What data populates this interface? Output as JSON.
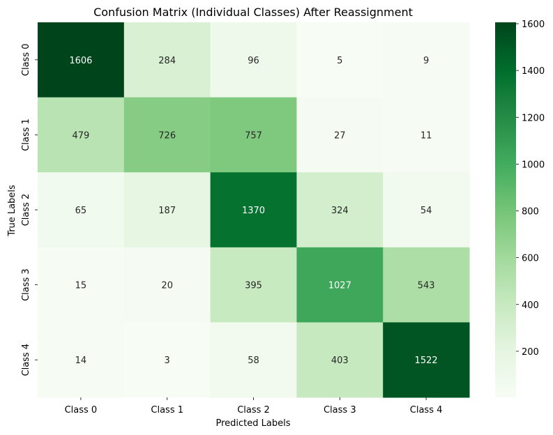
{
  "chart_data": {
    "type": "heatmap",
    "title": "Confusion Matrix (Individual Classes) After Reassignment",
    "xlabel": "Predicted Labels",
    "ylabel": "True Labels",
    "x_categories": [
      "Class 0",
      "Class 1",
      "Class 2",
      "Class 3",
      "Class 4"
    ],
    "y_categories": [
      "Class 0",
      "Class 1",
      "Class 2",
      "Class 3",
      "Class 4"
    ],
    "values": [
      [
        1606,
        284,
        96,
        5,
        9
      ],
      [
        479,
        726,
        757,
        27,
        11
      ],
      [
        65,
        187,
        1370,
        324,
        54
      ],
      [
        15,
        20,
        395,
        1027,
        543
      ],
      [
        14,
        3,
        58,
        403,
        1522
      ]
    ],
    "colormap": "Greens",
    "vmin": 3,
    "vmax": 1606,
    "colorbar_ticks": [
      200,
      400,
      600,
      800,
      1000,
      1200,
      1400,
      1600
    ],
    "colorbar_position": "right"
  }
}
